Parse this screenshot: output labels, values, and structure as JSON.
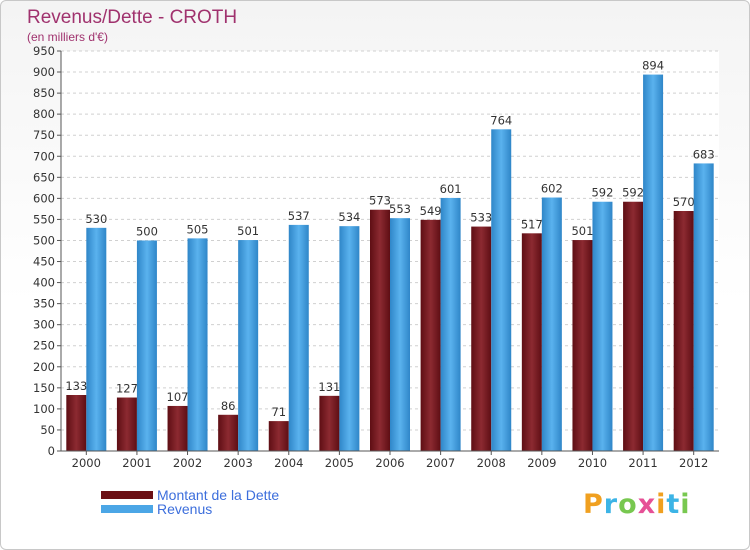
{
  "chart_data": {
    "type": "bar",
    "title": "Revenus/Dette - CROTH",
    "subtitle": "(en milliers d'€)",
    "categories": [
      "2000",
      "2001",
      "2002",
      "2003",
      "2004",
      "2005",
      "2006",
      "2007",
      "2008",
      "2009",
      "2010",
      "2011",
      "2012"
    ],
    "series": [
      {
        "name": "Montant de la Dette",
        "color": "#7a1b22",
        "values": [
          133,
          127,
          107,
          86,
          71,
          131,
          573,
          549,
          533,
          517,
          501,
          592,
          570
        ]
      },
      {
        "name": "Revenus",
        "color": "#4ba6e6",
        "values": [
          530,
          500,
          505,
          501,
          537,
          534,
          553,
          601,
          764,
          602,
          592,
          894,
          683
        ]
      }
    ],
    "ylim": [
      0,
      950
    ],
    "ytick_step": 50,
    "grid": true,
    "xlabel": "",
    "ylabel": ""
  },
  "legend": {
    "items": [
      {
        "label": "Montant de la Dette",
        "color": "#6b0f14"
      },
      {
        "label": "Revenus",
        "color": "#4ba6e6"
      }
    ]
  },
  "logo": {
    "letters": [
      "P",
      "r",
      "o",
      "x",
      "i",
      "t",
      "i"
    ],
    "colors": [
      "#f0a020",
      "#3cb4e6",
      "#78c850",
      "#e65096",
      "#f0a020",
      "#3cb4e6",
      "#78c850"
    ]
  }
}
